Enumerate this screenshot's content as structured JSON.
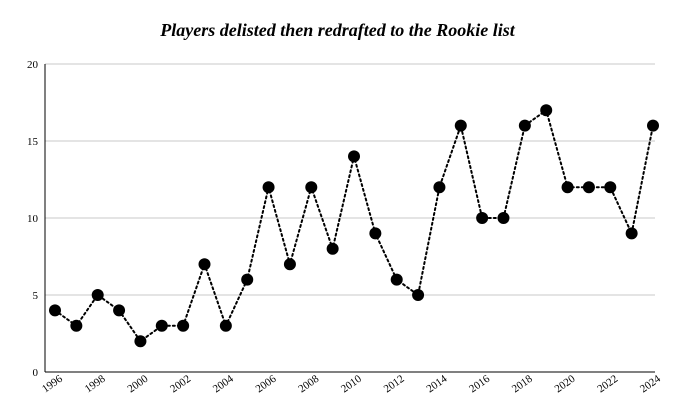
{
  "chart_data": {
    "type": "line",
    "title": "Players delisted then redrafted to the Rookie list",
    "xlabel": "",
    "ylabel": "",
    "ylim": [
      0,
      20
    ],
    "yticks": [
      0,
      5,
      10,
      15,
      20
    ],
    "xlim": [
      1996,
      2024
    ],
    "xticks": [
      1996,
      1998,
      2000,
      2002,
      2004,
      2006,
      2008,
      2010,
      2012,
      2014,
      2016,
      2018,
      2020,
      2022,
      2024
    ],
    "line_style": "dotted",
    "marker": "filled-circle",
    "grid": "horizontal",
    "legend": "none",
    "colors": {
      "series": "#000000",
      "grid": "#c8c8c8",
      "axis": "#000000"
    },
    "series": [
      {
        "x": [
          1996,
          1997,
          1998,
          1999,
          2000,
          2001,
          2002,
          2003,
          2004,
          2005,
          2006,
          2007,
          2008,
          2009,
          2010,
          2011,
          2012,
          2013,
          2014,
          2015,
          2016,
          2017,
          2018,
          2019,
          2020,
          2021,
          2022,
          2023,
          2024
        ],
        "values": [
          4,
          3,
          5,
          4,
          2,
          3,
          3,
          7,
          3,
          6,
          12,
          7,
          12,
          8,
          14,
          9,
          6,
          5,
          12,
          16,
          10,
          10,
          16,
          17,
          12,
          12,
          12,
          9,
          16
        ]
      }
    ]
  }
}
